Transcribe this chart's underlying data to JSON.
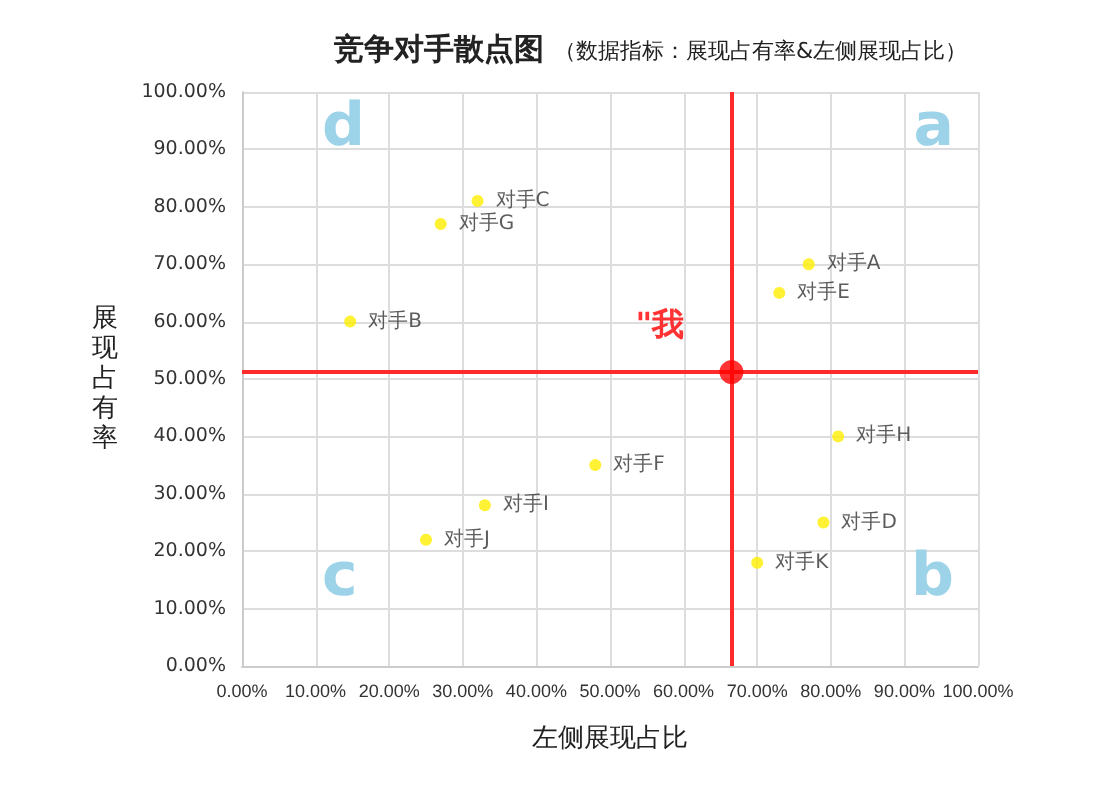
{
  "chart_data": {
    "type": "scatter",
    "title": "竞争对手散点图",
    "subtitle": "（数据指标：展现占有率&左侧展现占比）",
    "xlabel": "左侧展现占比",
    "ylabel": "展现占有率",
    "series": [
      {
        "name": "对手C",
        "color": "#ffee00",
        "x": [
          32
        ],
        "values": [
          81
        ]
      },
      {
        "name": "对手G",
        "color": "#ffee00",
        "x": [
          27
        ],
        "values": [
          77
        ]
      },
      {
        "name": "对手B",
        "color": "#ffee00",
        "x": [
          14.7
        ],
        "values": [
          60
        ]
      },
      {
        "name": "对手A",
        "color": "#ffee00",
        "x": [
          77
        ],
        "values": [
          70
        ]
      },
      {
        "name": "对手E",
        "color": "#ffee00",
        "x": [
          73
        ],
        "values": [
          65
        ]
      },
      {
        "name": "对手H",
        "color": "#ffee00",
        "x": [
          81
        ],
        "values": [
          40
        ]
      },
      {
        "name": "对手F",
        "color": "#ffee00",
        "x": [
          48
        ],
        "values": [
          35
        ]
      },
      {
        "name": "对手I",
        "color": "#ffee00",
        "x": [
          33
        ],
        "values": [
          28
        ]
      },
      {
        "name": "对手J",
        "color": "#ffee00",
        "x": [
          25
        ],
        "values": [
          22
        ]
      },
      {
        "name": "对手D",
        "color": "#ffee00",
        "x": [
          79
        ],
        "values": [
          25
        ]
      },
      {
        "name": "对手K",
        "color": "#ffee00",
        "x": [
          70
        ],
        "values": [
          18
        ]
      },
      {
        "name": "\"我",
        "color": "#ff0000",
        "x": [
          66.5
        ],
        "values": [
          51.2
        ]
      }
    ],
    "xlim": [
      0,
      100
    ],
    "ylim": [
      0,
      100
    ],
    "xticks": [
      {
        "value": 0,
        "label": "0.00%"
      },
      {
        "value": 10,
        "label": "10.00%"
      },
      {
        "value": 20,
        "label": "20.00%"
      },
      {
        "value": 30,
        "label": "30.00%"
      },
      {
        "value": 40,
        "label": "40.00%"
      },
      {
        "value": 50,
        "label": "50.00%"
      },
      {
        "value": 60,
        "label": "60.00%"
      },
      {
        "value": 70,
        "label": "70.00%"
      },
      {
        "value": 80,
        "label": "80.00%"
      },
      {
        "value": 90,
        "label": "90.00%"
      },
      {
        "value": 100,
        "label": "100.00%"
      }
    ],
    "yticks": [
      {
        "value": 0,
        "label": "0.00%"
      },
      {
        "value": 10,
        "label": "10.00%"
      },
      {
        "value": 20,
        "label": "20.00%"
      },
      {
        "value": 30,
        "label": "30.00%"
      },
      {
        "value": 40,
        "label": "40.00%"
      },
      {
        "value": 50,
        "label": "50.00%"
      },
      {
        "value": 60,
        "label": "60.00%"
      },
      {
        "value": 70,
        "label": "70.00%"
      },
      {
        "value": 80,
        "label": "80.00%"
      },
      {
        "value": 90,
        "label": "90.00%"
      },
      {
        "value": 100,
        "label": "100.00%"
      }
    ],
    "ref_lines": [
      {
        "axis": "x",
        "value": 66.5,
        "color": "#ff2a2a"
      },
      {
        "axis": "y",
        "value": 51.2,
        "color": "#ff2a2a"
      }
    ],
    "annotations": [
      "d",
      "a",
      "c",
      "b"
    ],
    "grid": true,
    "legend": false,
    "marker": "circle"
  }
}
